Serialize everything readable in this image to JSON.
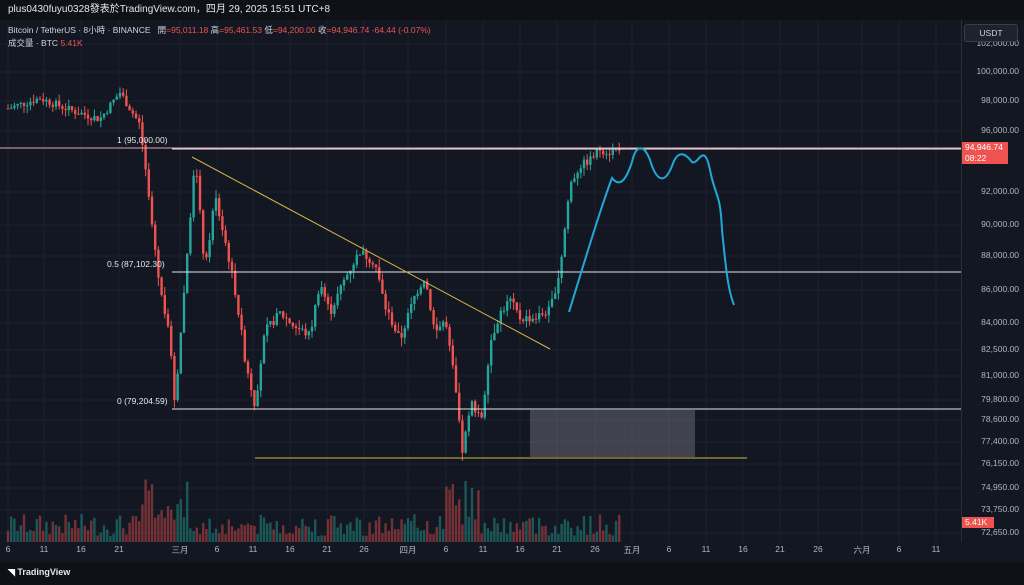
{
  "window": {
    "title": "plus0430fuyu0328發表於TradingView.com，四月 29, 2025 15:51 UTC+8"
  },
  "header": {
    "symbol": "Bitcoin / TetherUS · 8小時 · BINANCE",
    "open_label": "開",
    "open_value": "=95,011.18",
    "high_label": "高",
    "high_value": "=95,461.53",
    "low_label": "低",
    "low_value": "=94,200.00",
    "close_label": "收",
    "close_value": "=94,946.74",
    "change": "-64.44 (-0.07%)",
    "volume_label": "成交量 · BTC",
    "volume_value": "5.41K"
  },
  "currency_button": "USDT",
  "price_tag": {
    "price": "94,946.74",
    "countdown": "08:22"
  },
  "volume_tag": "5.41K",
  "footer": {
    "logo": "TradingView"
  },
  "fib": {
    "level_1": "1 (95,000.00)",
    "level_05": "0.5 (87,102.30)",
    "level_0": "0 (79,204.59)"
  },
  "colors": {
    "bull": "#26a69a",
    "bear": "#ef5350",
    "projection": "#22a7d8",
    "trendline": "#d4b441",
    "fib": "#e5e7eb"
  },
  "y_ticks": [
    "102,000.00",
    "100,000.00",
    "98,000.00",
    "96,000.00",
    "92,000.00",
    "90,000.00",
    "88,000.00",
    "86,000.00",
    "84,000.00",
    "82,500.00",
    "81,000.00",
    "79,800.00",
    "78,600.00",
    "77,400.00",
    "76,150.00",
    "74,950.00",
    "73,750.00",
    "72,650.00"
  ],
  "x_ticks": [
    "6",
    "11",
    "16",
    "21",
    "三月",
    "6",
    "11",
    "16",
    "21",
    "26",
    "四月",
    "6",
    "11",
    "16",
    "21",
    "26",
    "五月",
    "6",
    "11",
    "16",
    "21",
    "26",
    "六月",
    "6",
    "11"
  ],
  "chart_data": {
    "type": "candlestick",
    "symbol": "BTCUSDT",
    "interval": "8h",
    "levels": [
      95000.0,
      87102.3,
      79204.59
    ],
    "last_close": 94946.74
  }
}
